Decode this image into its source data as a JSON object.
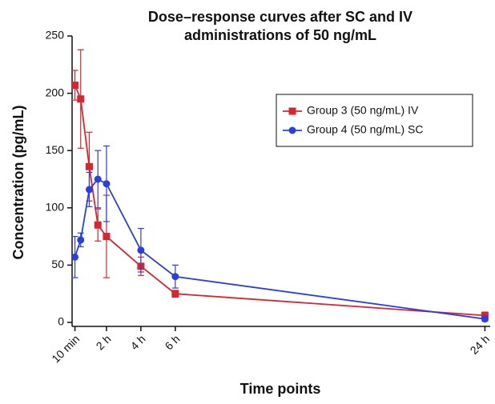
{
  "chart_data": {
    "type": "line",
    "title": [
      "Dose–response curves after SC and IV",
      "administrations of 50 ng/mL"
    ],
    "x_label": "Time points",
    "y_label": "Concentration (pg/mL)",
    "x": [
      0.1667,
      0.5,
      1,
      1.5,
      2,
      4,
      6,
      24
    ],
    "series": [
      {
        "name": "Group 3 (50 ng/mL) IV",
        "color": "#d7262f",
        "marker": "square",
        "values": [
          207,
          195,
          136,
          85,
          75,
          49,
          25,
          6
        ],
        "errors": [
          13,
          43,
          30,
          14,
          36,
          8,
          3,
          3
        ]
      },
      {
        "name": "Group 4 (50 ng/mL) SC",
        "color": "#2b3fe0",
        "marker": "circle",
        "values": [
          57,
          72,
          116,
          125,
          121,
          63,
          40,
          3
        ],
        "errors": [
          18,
          6,
          15,
          25,
          33,
          19,
          10,
          2
        ]
      }
    ],
    "xlim": [
      0,
      24.4
    ],
    "ylim": [
      0,
      250
    ],
    "xticks": [
      {
        "value": 0.1667,
        "label": "10 min"
      },
      {
        "value": 2,
        "label": "2 h"
      },
      {
        "value": 4,
        "label": "4 h"
      },
      {
        "value": 6,
        "label": "6 h"
      },
      {
        "value": 24,
        "label": "24 h"
      }
    ],
    "yticks": [
      0,
      50,
      100,
      150,
      200,
      250
    ],
    "legend": "upper right"
  }
}
